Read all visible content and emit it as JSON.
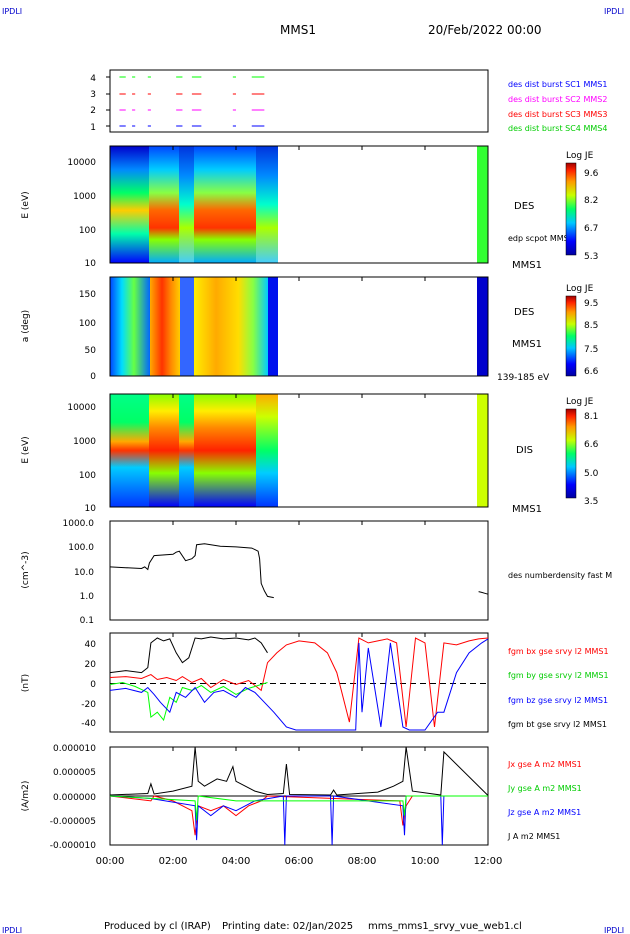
{
  "header": {
    "corner_tl": "IPDLI",
    "corner_tr": "IPDLI",
    "corner_bl": "IPDLI",
    "corner_br": "IPDLI",
    "spacecraft": "MMS1",
    "date": "20/Feb/2022 00:00"
  },
  "footer": {
    "produced_by": "Produced by cl (IRAP)",
    "printing_date": "Printing date: 02/Jan/2025",
    "file": "mms_mms1_srvy_vue_web1.cl"
  },
  "colors": {
    "blue": "#0000ff",
    "magenta": "#ff00ff",
    "red": "#ff0000",
    "green": "#00ff00",
    "black": "#000000",
    "corner": "#0000cc"
  },
  "time_axis": {
    "ticks": [
      "00:00",
      "02:00",
      "04:00",
      "06:00",
      "08:00",
      "10:00",
      "12:00"
    ],
    "range_hours": [
      0,
      12
    ]
  },
  "chart_data": [
    {
      "id": "burst",
      "type": "scatter",
      "y_ticks": [
        "4",
        "3",
        "2",
        "1"
      ],
      "labels": [
        {
          "text": "des dist burst SC1 MMS1",
          "color": "#0000ff"
        },
        {
          "text": "des dist burst SC2 MMS2",
          "color": "#ff00ff"
        },
        {
          "text": "des dist burst SC3 MMS3",
          "color": "#ff0000"
        },
        {
          "text": "des dist burst SC4 MMS4",
          "color": "#00ff00"
        }
      ],
      "level_colors": [
        "#0000ff",
        "#ff00ff",
        "#ff0000",
        "#00ff00"
      ],
      "segments_hours": [
        [
          0.3,
          0.5
        ],
        [
          0.7,
          0.8
        ],
        [
          1.2,
          1.3
        ],
        [
          2.1,
          2.3
        ],
        [
          2.6,
          2.9
        ],
        [
          3.9,
          4.0
        ],
        [
          4.5,
          4.9
        ]
      ]
    },
    {
      "id": "des_energy",
      "type": "heatmap",
      "ylabel": "E (eV)",
      "y_ticks": [
        "10000",
        "1000",
        "100",
        "10"
      ],
      "ylim": [
        10,
        30000
      ],
      "label_main": "DES",
      "label_overlay": "edp scpot MMS1",
      "label_sc": "MMS1",
      "colorbar": {
        "title": "Log JE",
        "ticks": [
          "9.6",
          "8.2",
          "6.7",
          "5.3"
        ]
      },
      "coverage_hours": [
        [
          0,
          5.3
        ],
        [
          11.7,
          12.0
        ]
      ]
    },
    {
      "id": "des_pitch",
      "type": "heatmap",
      "ylabel": "a (deg)",
      "y_ticks": [
        "150",
        "100",
        "50",
        "0"
      ],
      "ylim": [
        0,
        185
      ],
      "label_main": "DES",
      "label_sc": "MMS1",
      "label_range": "139-185 eV",
      "colorbar": {
        "title": "Log JE",
        "ticks": [
          "9.5",
          "8.5",
          "7.5",
          "6.6"
        ]
      },
      "coverage_hours": [
        [
          0,
          5.3
        ],
        [
          11.7,
          12.0
        ]
      ]
    },
    {
      "id": "dis_energy",
      "type": "heatmap",
      "ylabel": "E (eV)",
      "y_ticks": [
        "10000",
        "1000",
        "100",
        "10"
      ],
      "ylim": [
        10,
        25000
      ],
      "label_main": "DIS",
      "label_sc": "MMS1",
      "colorbar": {
        "title": "Log JE",
        "ticks": [
          "8.1",
          "6.6",
          "5.0",
          "3.5"
        ]
      },
      "coverage_hours": [
        [
          0,
          5.3
        ],
        [
          11.7,
          12.0
        ]
      ]
    },
    {
      "id": "density",
      "type": "line",
      "ylabel": "(cm^-3)",
      "y_ticks": [
        "1000.0",
        "100.0",
        "10.0",
        "1.0",
        "0.1"
      ],
      "ylim": [
        0.1,
        1000
      ],
      "yscale": "log",
      "series": [
        {
          "name": "des numberdensity fast M",
          "color": "#000000",
          "x": [
            0.0,
            0.5,
            1.0,
            1.1,
            1.2,
            1.25,
            1.4,
            2.0,
            2.1,
            2.2,
            2.4,
            2.6,
            2.7,
            2.75,
            3.0,
            3.5,
            4.0,
            4.5,
            4.6,
            4.7,
            4.75,
            4.8,
            4.9,
            5.0,
            5.2
          ],
          "y": [
            14,
            13,
            12,
            14,
            11,
            20,
            40,
            45,
            55,
            60,
            25,
            30,
            40,
            110,
            120,
            95,
            90,
            80,
            70,
            60,
            30,
            3,
            1.5,
            0.9,
            0.8
          ]
        },
        {
          "name": "",
          "color": "#000000",
          "x": [
            11.7,
            11.8,
            11.9,
            12.0
          ],
          "y": [
            1.4,
            1.3,
            1.2,
            1.1
          ]
        }
      ]
    },
    {
      "id": "bfield",
      "type": "line",
      "ylabel": "(nT)",
      "y_ticks": [
        "40",
        "20",
        "0",
        "-20",
        "-40"
      ],
      "ylim": [
        -50,
        50
      ],
      "labels": [
        {
          "text": "fgm bx gse srvy l2 MMS1",
          "color": "#ff0000"
        },
        {
          "text": "fgm by gse srvy l2 MMS1",
          "color": "#00ff00"
        },
        {
          "text": "fgm bz gse srvy l2 MMS1",
          "color": "#0000ff"
        },
        {
          "text": "fgm bt gse srvy l2 MMS1",
          "color": "#000000"
        }
      ],
      "series": [
        {
          "name": "fgm bx gse srvy l2 MMS1",
          "color": "#ff0000",
          "x": [
            0.0,
            0.5,
            1.0,
            1.3,
            1.5,
            1.8,
            2.1,
            2.3,
            2.6,
            2.9,
            3.2,
            3.6,
            4.0,
            4.4,
            4.8,
            5.0,
            5.3,
            5.6,
            6.0,
            6.5,
            6.9,
            7.2,
            7.6,
            7.9,
            8.2,
            8.5,
            8.8,
            9.1,
            9.4,
            9.7,
            10.0,
            10.3,
            10.6,
            11.0,
            11.4,
            11.7,
            12.0
          ],
          "y": [
            5,
            6,
            4,
            8,
            3,
            5,
            2,
            6,
            0,
            4,
            -5,
            3,
            -2,
            2,
            -8,
            20,
            30,
            38,
            42,
            40,
            30,
            10,
            -40,
            45,
            40,
            42,
            44,
            40,
            -45,
            45,
            40,
            -45,
            40,
            38,
            42,
            44,
            45
          ]
        },
        {
          "name": "fgm by gse srvy l2 MMS1",
          "color": "#00ff00",
          "x": [
            0.0,
            0.4,
            0.8,
            1.2,
            1.3,
            1.5,
            1.7,
            1.9,
            2.1,
            2.3,
            2.6,
            2.9,
            3.2,
            3.6,
            4.0,
            4.4,
            4.8,
            5.0
          ],
          "y": [
            -2,
            0,
            -4,
            -10,
            -35,
            -30,
            -38,
            -15,
            -20,
            -5,
            -8,
            -3,
            -10,
            -4,
            -12,
            -6,
            -2,
            0
          ]
        },
        {
          "name": "fgm bz gse srvy l2 MMS1",
          "color": "#0000ff",
          "x": [
            0.0,
            0.5,
            1.0,
            1.2,
            1.4,
            1.6,
            1.9,
            2.1,
            2.4,
            2.7,
            3.0,
            3.3,
            3.6,
            4.0,
            4.3,
            4.6,
            4.9,
            5.2,
            5.6,
            5.9,
            7.8,
            7.9,
            8.0,
            8.2,
            8.6,
            8.9,
            9.3,
            9.5,
            10.0,
            10.4,
            10.6,
            11.0,
            11.4,
            11.8,
            12.0
          ],
          "y": [
            -8,
            -6,
            -10,
            -5,
            -12,
            -20,
            -30,
            -10,
            -15,
            -5,
            -20,
            -10,
            -8,
            -15,
            -5,
            -10,
            -20,
            -30,
            -45,
            -48,
            -48,
            40,
            -30,
            35,
            -45,
            40,
            -45,
            -48,
            -48,
            -30,
            -30,
            10,
            30,
            40,
            44
          ]
        },
        {
          "name": "fgm bt gse srvy l2 MMS1",
          "color": "#000000",
          "x": [
            0.0,
            0.5,
            1.0,
            1.2,
            1.3,
            1.5,
            1.7,
            1.9,
            2.1,
            2.3,
            2.5,
            2.7,
            2.9,
            3.2,
            3.6,
            4.0,
            4.4,
            4.6,
            4.8,
            5.0
          ],
          "y": [
            10,
            12,
            10,
            15,
            40,
            45,
            42,
            44,
            30,
            20,
            25,
            45,
            44,
            46,
            44,
            45,
            43,
            45,
            40,
            30
          ]
        }
      ]
    },
    {
      "id": "current",
      "type": "line",
      "ylabel": "(A/m2)",
      "y_ticks": [
        "0.000010",
        "0.000005",
        "0.000000",
        "-0.000005",
        "-0.000010"
      ],
      "ylim": [
        -1e-05,
        1e-05
      ],
      "labels": [
        {
          "text": "Jx gse A m2 MMS1",
          "color": "#ff0000"
        },
        {
          "text": "Jy gse A m2 MMS1",
          "color": "#00ff00"
        },
        {
          "text": "Jz gse A m2 MMS1",
          "color": "#0000ff"
        },
        {
          "text": "J A m2 MMS1",
          "color": "#000000"
        }
      ],
      "series": [
        {
          "name": "J A m2 MMS1",
          "color": "#000000",
          "x": [
            0.0,
            1.2,
            1.3,
            1.4,
            2.0,
            2.6,
            2.7,
            2.8,
            3.0,
            3.4,
            3.7,
            3.9,
            4.0,
            4.3,
            4.6,
            5.0,
            5.5,
            5.6,
            5.7,
            7.0,
            7.1,
            7.2,
            8.5,
            8.8,
            9.0,
            9.3,
            9.4,
            9.6,
            10.5,
            10.6,
            12.0
          ],
          "y": [
            2e-07,
            5e-07,
            2.5e-06,
            4e-07,
            1e-06,
            2e-06,
            1e-05,
            3e-06,
            2e-06,
            3.5e-06,
            3e-06,
            6e-06,
            3e-06,
            2e-06,
            1e-06,
            3e-07,
            5e-07,
            6.5e-06,
            3e-07,
            2e-07,
            1.2e-06,
            2e-07,
            8e-07,
            1.5e-06,
            2e-06,
            3e-06,
            1e-05,
            1e-06,
            2e-07,
            9e-06,
            1e-07
          ]
        },
        {
          "name": "Jx gse A m2 MMS1",
          "color": "#ff0000",
          "x": [
            0.0,
            1.3,
            1.4,
            2.0,
            2.6,
            2.7,
            2.8,
            3.2,
            3.6,
            4.0,
            4.4,
            4.8,
            5.0,
            9.2,
            9.3,
            9.4,
            9.6,
            12.0
          ],
          "y": [
            0,
            -1e-06,
            0,
            -1e-06,
            -3e-06,
            -8e-06,
            -2e-06,
            -3e-06,
            -2e-06,
            -4e-06,
            -2e-06,
            -1e-06,
            0,
            -1e-06,
            -6e-06,
            -2e-06,
            0,
            0
          ]
        },
        {
          "name": "Jz gse A m2 MMS1",
          "color": "#0000ff",
          "x": [
            0.0,
            1.3,
            2.7,
            2.75,
            2.8,
            3.2,
            3.6,
            4.0,
            4.6,
            5.5,
            5.55,
            5.6,
            7.0,
            7.05,
            7.1,
            9.3,
            9.35,
            9.4,
            10.5,
            10.55,
            10.6,
            12.0
          ],
          "y": [
            0,
            -5e-07,
            -2e-06,
            -9e-06,
            -2e-06,
            -4e-06,
            -2e-06,
            -3e-06,
            -1e-06,
            0,
            -1e-05,
            0,
            0,
            -1e-05,
            0,
            -2e-06,
            -8e-06,
            0,
            0,
            -1e-05,
            0,
            0
          ]
        },
        {
          "name": "Jy gse A m2 MMS1",
          "color": "#00ff00",
          "x": [
            0.0,
            2.7,
            2.75,
            2.8,
            4.0,
            9.3,
            9.35,
            9.4,
            12.0
          ],
          "y": [
            0,
            -1e-06,
            -5e-06,
            0,
            -1e-06,
            -1e-06,
            -4e-06,
            0,
            0
          ]
        }
      ]
    }
  ]
}
